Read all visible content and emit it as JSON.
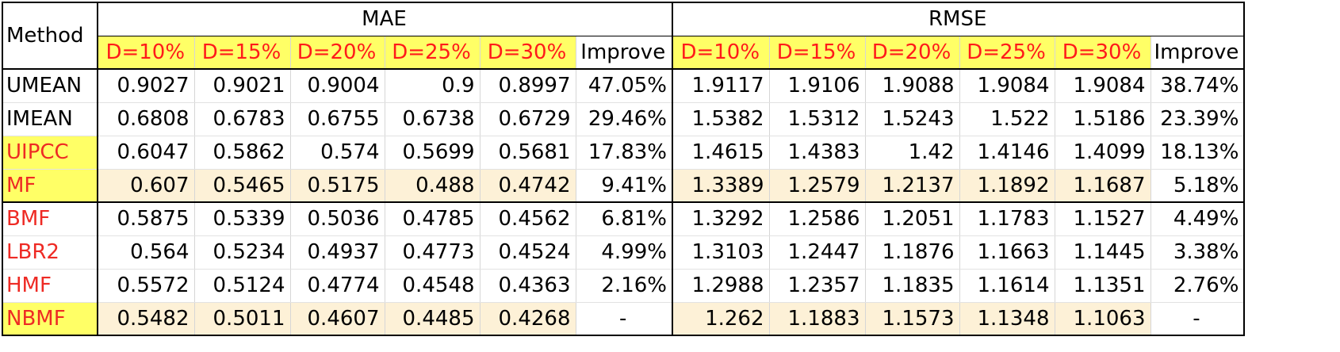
{
  "header": {
    "method_label": "Method",
    "mae_label": "MAE",
    "rmse_label": "RMSE",
    "density_labels": [
      "D=10%",
      "D=15%",
      "D=20%",
      "D=25%",
      "D=30%"
    ],
    "improve_label": "Improve"
  },
  "rows": [
    {
      "method": "UMEAN",
      "mae": [
        "0.9027",
        "0.9021",
        "0.9004",
        "0.9",
        "0.8997"
      ],
      "mae_improve": "47.05%",
      "rmse": [
        "1.9117",
        "1.9106",
        "1.9088",
        "1.9084",
        "1.9084"
      ],
      "rmse_improve": "38.74%"
    },
    {
      "method": "IMEAN",
      "mae": [
        "0.6808",
        "0.6783",
        "0.6755",
        "0.6738",
        "0.6729"
      ],
      "mae_improve": "29.46%",
      "rmse": [
        "1.5382",
        "1.5312",
        "1.5243",
        "1.522",
        "1.5186"
      ],
      "rmse_improve": "23.39%"
    },
    {
      "method": "UIPCC",
      "mae": [
        "0.6047",
        "0.5862",
        "0.574",
        "0.5699",
        "0.5681"
      ],
      "mae_improve": "17.83%",
      "rmse": [
        "1.4615",
        "1.4383",
        "1.42",
        "1.4146",
        "1.4099"
      ],
      "rmse_improve": "18.13%"
    },
    {
      "method": "MF",
      "mae": [
        "0.607",
        "0.5465",
        "0.5175",
        "0.488",
        "0.4742"
      ],
      "mae_improve": "9.41%",
      "rmse": [
        "1.3389",
        "1.2579",
        "1.2137",
        "1.1892",
        "1.1687"
      ],
      "rmse_improve": "5.18%"
    },
    {
      "method": "BMF",
      "mae": [
        "0.5875",
        "0.5339",
        "0.5036",
        "0.4785",
        "0.4562"
      ],
      "mae_improve": "6.81%",
      "rmse": [
        "1.3292",
        "1.2586",
        "1.2051",
        "1.1783",
        "1.1527"
      ],
      "rmse_improve": "4.49%"
    },
    {
      "method": "LBR2",
      "mae": [
        "0.564",
        "0.5234",
        "0.4937",
        "0.4773",
        "0.4524"
      ],
      "mae_improve": "4.99%",
      "rmse": [
        "1.3103",
        "1.2447",
        "1.1876",
        "1.1663",
        "1.1445"
      ],
      "rmse_improve": "3.38%"
    },
    {
      "method": "HMF",
      "mae": [
        "0.5572",
        "0.5124",
        "0.4774",
        "0.4548",
        "0.4363"
      ],
      "mae_improve": "2.16%",
      "rmse": [
        "1.2988",
        "1.2357",
        "1.1835",
        "1.1614",
        "1.1351"
      ],
      "rmse_improve": "2.76%"
    },
    {
      "method": "NBMF",
      "mae": [
        "0.5482",
        "0.5011",
        "0.4607",
        "0.4485",
        "0.4268"
      ],
      "mae_improve": "-",
      "rmse": [
        "1.262",
        "1.1883",
        "1.1573",
        "1.1348",
        "1.1063"
      ],
      "rmse_improve": "-"
    }
  ],
  "colors": {
    "highlight_yellow": "#ffff66",
    "highlight_cream": "#fdf1d7",
    "red_text": "#ee2a24"
  }
}
